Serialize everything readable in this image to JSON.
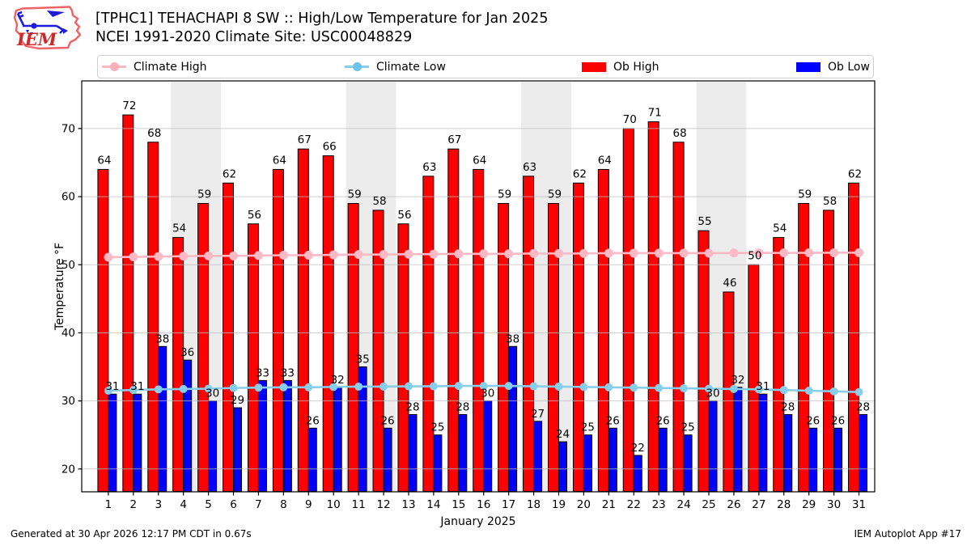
{
  "header": {
    "title_line1": "[TPHC1] TEHACHAPI 8 SW :: High/Low Temperature for Jan 2025",
    "title_line2": "NCEI 1991-2020 Climate Site: USC00048829",
    "logo_text": "IEM"
  },
  "legend": {
    "items": [
      {
        "label": "Climate High",
        "type": "line",
        "color": "#ffb9c5"
      },
      {
        "label": "Climate Low",
        "type": "line",
        "color": "#87ceeb"
      },
      {
        "label": "Ob High",
        "type": "patch",
        "color": "#ff0000"
      },
      {
        "label": "Ob Low",
        "type": "patch",
        "color": "#0000ff"
      }
    ]
  },
  "chart_data": {
    "type": "bar",
    "title": "[TPHC1] TEHACHAPI 8 SW :: High/Low Temperature for Jan 2025",
    "subtitle": "NCEI 1991-2020 Climate Site: USC00048829",
    "xlabel": "January 2025",
    "ylabel": "Temperature °F",
    "x": [
      1,
      2,
      3,
      4,
      5,
      6,
      7,
      8,
      9,
      10,
      11,
      12,
      13,
      14,
      15,
      16,
      17,
      18,
      19,
      20,
      21,
      22,
      23,
      24,
      25,
      26,
      27,
      28,
      29,
      30,
      31
    ],
    "series": [
      {
        "name": "Ob High",
        "type": "bar",
        "color": "#ff0000",
        "values": [
          64,
          72,
          68,
          54,
          59,
          62,
          56,
          64,
          67,
          66,
          59,
          58,
          56,
          63,
          67,
          64,
          59,
          63,
          59,
          62,
          64,
          70,
          71,
          68,
          55,
          46,
          50,
          54,
          59,
          58,
          62
        ]
      },
      {
        "name": "Ob Low",
        "type": "bar",
        "color": "#0000ff",
        "values": [
          31,
          31,
          38,
          36,
          30,
          29,
          33,
          33,
          26,
          32,
          35,
          26,
          28,
          25,
          28,
          30,
          38,
          27,
          24,
          25,
          26,
          22,
          26,
          25,
          30,
          32,
          31,
          28,
          26,
          26,
          28
        ]
      },
      {
        "name": "Climate High",
        "type": "line",
        "color": "#ffb9c5",
        "values": [
          51.1,
          51.15,
          51.2,
          51.25,
          51.3,
          51.3,
          51.35,
          51.4,
          51.4,
          51.45,
          51.5,
          51.5,
          51.55,
          51.55,
          51.6,
          51.6,
          51.6,
          51.65,
          51.65,
          51.65,
          51.7,
          51.7,
          51.7,
          51.7,
          51.7,
          51.72,
          51.73,
          51.74,
          51.75,
          51.76,
          51.77
        ]
      },
      {
        "name": "Climate Low",
        "type": "line",
        "color": "#87ceeb",
        "values": [
          31.5,
          31.6,
          31.7,
          31.75,
          31.8,
          31.9,
          31.95,
          32.0,
          32.0,
          32.05,
          32.1,
          32.1,
          32.15,
          32.15,
          32.2,
          32.2,
          32.2,
          32.15,
          32.1,
          32.05,
          32.0,
          31.95,
          31.9,
          31.85,
          31.8,
          31.75,
          31.7,
          31.6,
          31.5,
          31.4,
          31.3
        ]
      }
    ],
    "yticks": [
      20,
      30,
      40,
      50,
      60,
      70
    ],
    "ylim": [
      16.65,
      77.0
    ],
    "weekend_bands": [
      [
        3.5,
        5.5
      ],
      [
        10.5,
        12.5
      ],
      [
        17.5,
        19.5
      ],
      [
        24.5,
        26.5
      ]
    ],
    "grid": true,
    "legend_position": "top",
    "band_color": "#ececec",
    "grid_color": "#bfbfbf",
    "bar_edge_color": "#000000"
  },
  "footer": {
    "left": "Generated at 30 Apr 2026 12:17 PM CDT in 0.67s",
    "right": "IEM Autoplot App #17"
  }
}
